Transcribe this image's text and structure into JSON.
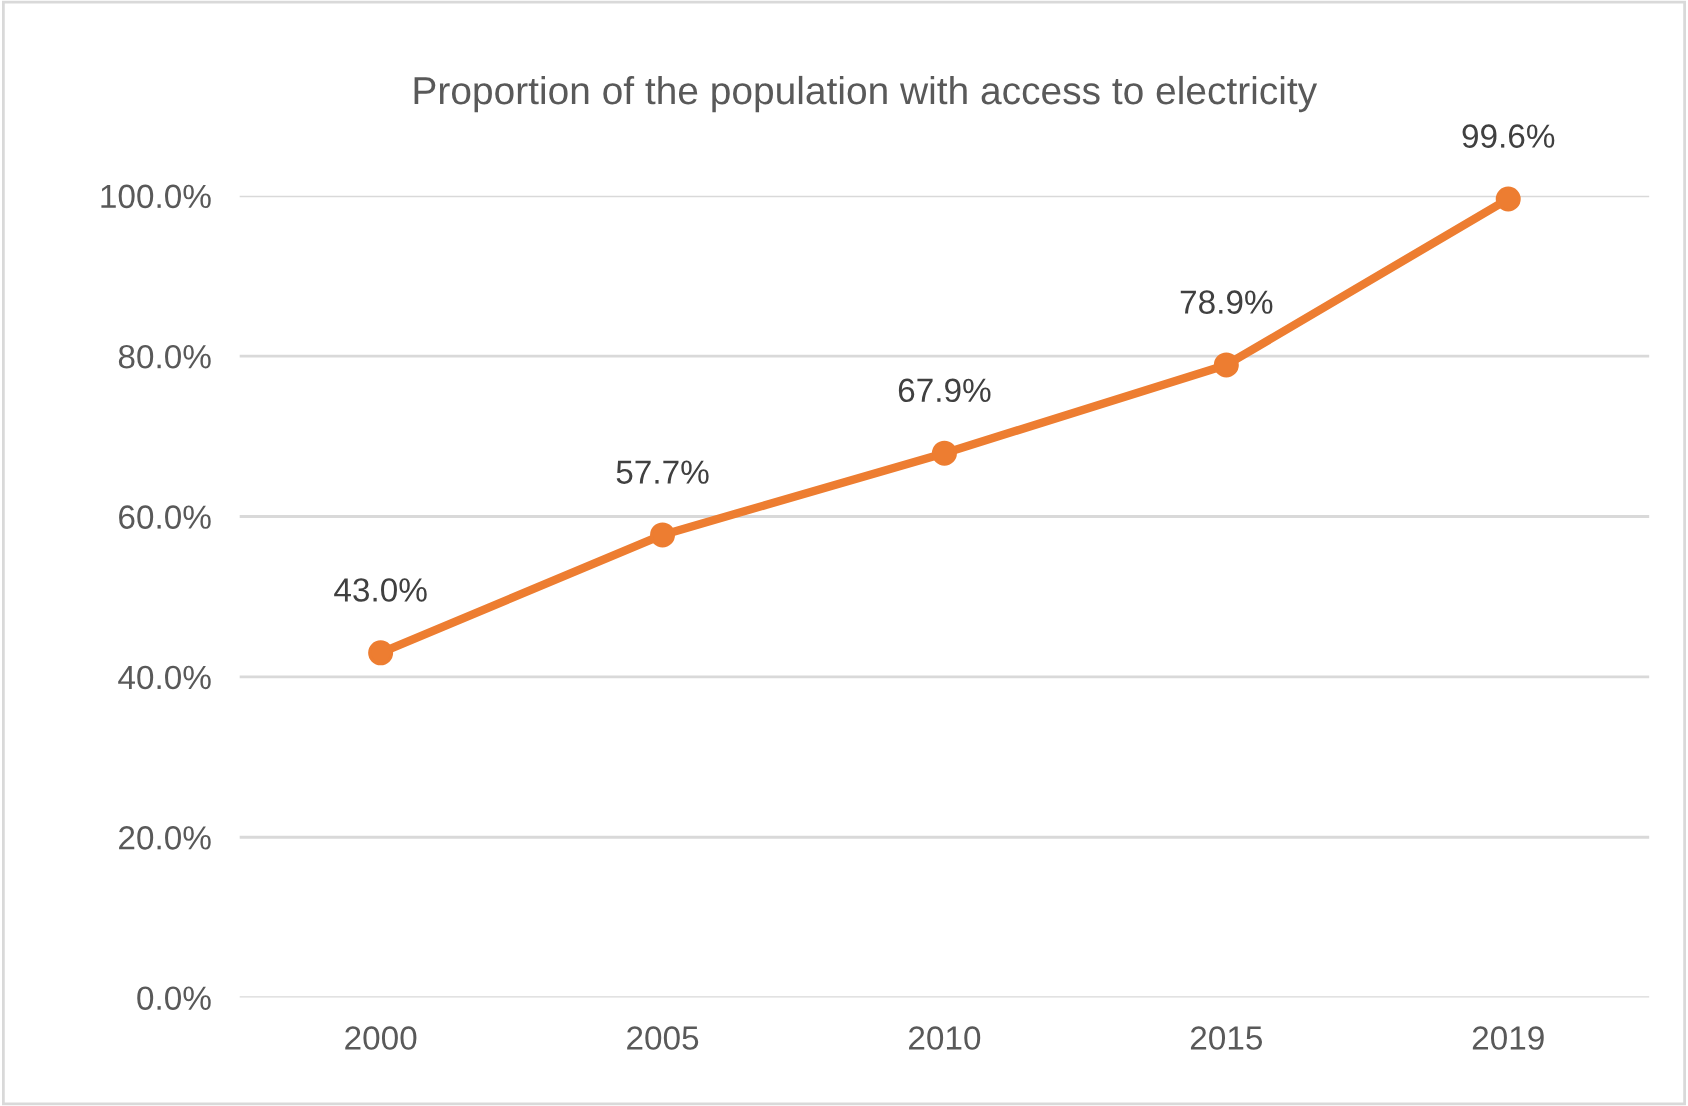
{
  "chart_data": {
    "type": "line",
    "title": "Proportion of the population with access to electricity",
    "categories": [
      "2000",
      "2005",
      "2010",
      "2015",
      "2019"
    ],
    "series": [
      {
        "color": "#ed7d31",
        "values": [
          43.0,
          57.7,
          67.9,
          78.9,
          99.6
        ],
        "value_labels": [
          "43.0%",
          "57.7%",
          "67.9%",
          "78.9%",
          "99.6%"
        ]
      }
    ],
    "ylim": [
      0,
      100
    ],
    "yticks": [
      {
        "value": 0,
        "label": "0.0%"
      },
      {
        "value": 20,
        "label": "20.0%"
      },
      {
        "value": 40,
        "label": "40.0%"
      },
      {
        "value": 60,
        "label": "60.0%"
      },
      {
        "value": 80,
        "label": "80.0%"
      },
      {
        "value": 100,
        "label": "100.0%"
      }
    ],
    "grid": "y",
    "marker": "circle",
    "line_style": "solid"
  }
}
